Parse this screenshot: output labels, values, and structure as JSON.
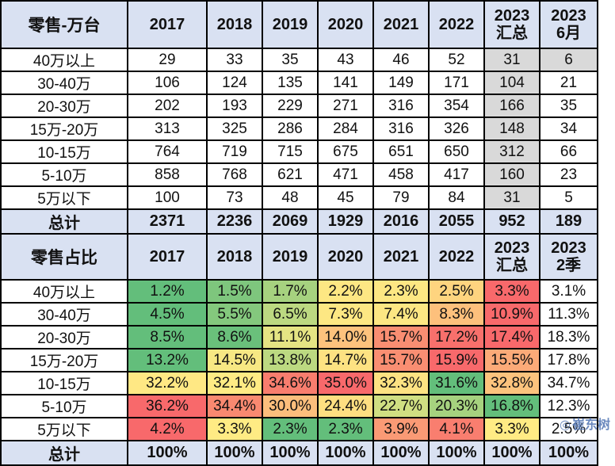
{
  "volume_table": {
    "header": {
      "label": "零售-万台",
      "years": [
        "2017",
        "2018",
        "2019",
        "2020",
        "2021",
        "2022"
      ],
      "col_2023_total": {
        "line1": "2023",
        "line2": "汇总"
      },
      "col_2023_june": {
        "line1": "2023",
        "line2": "6月"
      }
    },
    "rows": [
      {
        "label": "40万以上",
        "values": [
          "29",
          "33",
          "35",
          "43",
          "46",
          "52",
          "31",
          "6"
        ]
      },
      {
        "label": "30-40万",
        "values": [
          "106",
          "124",
          "135",
          "141",
          "149",
          "171",
          "104",
          "21"
        ]
      },
      {
        "label": "20-30万",
        "values": [
          "202",
          "193",
          "229",
          "271",
          "316",
          "354",
          "166",
          "35"
        ]
      },
      {
        "label": "15万-20万",
        "values": [
          "313",
          "325",
          "286",
          "284",
          "316",
          "326",
          "148",
          "34"
        ]
      },
      {
        "label": "10-15万",
        "values": [
          "764",
          "719",
          "715",
          "675",
          "651",
          "650",
          "312",
          "66"
        ]
      },
      {
        "label": "5-10万",
        "values": [
          "858",
          "768",
          "621",
          "471",
          "458",
          "417",
          "160",
          "23"
        ]
      },
      {
        "label": "5万以下",
        "values": [
          "100",
          "73",
          "48",
          "45",
          "79",
          "84",
          "31",
          "5"
        ]
      }
    ],
    "total": {
      "label": "总计",
      "values": [
        "2371",
        "2236",
        "2069",
        "1929",
        "2016",
        "2055",
        "952",
        "189"
      ]
    }
  },
  "share_table": {
    "header": {
      "label": "零售占比",
      "years": [
        "2017",
        "2018",
        "2019",
        "2020",
        "2021",
        "2022"
      ],
      "col_2023_total": {
        "line1": "2023",
        "line2": "汇总"
      },
      "col_2023_q2": {
        "line1": "2023",
        "line2": "2季"
      }
    },
    "rows": [
      {
        "label": "40万以上",
        "values": [
          "1.2%",
          "1.5%",
          "1.7%",
          "2.2%",
          "2.3%",
          "2.5%",
          "3.3%",
          "3.1%"
        ],
        "colors": [
          "#63be7b",
          "#7ec67d",
          "#a6d27f",
          "#fde783",
          "#fde783",
          "#fed47f",
          "#f8696b",
          "#ffffff"
        ]
      },
      {
        "label": "30-40万",
        "values": [
          "4.5%",
          "5.5%",
          "6.5%",
          "7.3%",
          "7.4%",
          "8.3%",
          "10.9%",
          "11.3%"
        ],
        "colors": [
          "#63be7b",
          "#84c87d",
          "#bcd981",
          "#fde783",
          "#fde783",
          "#fdc07c",
          "#f8696b",
          "#ffffff"
        ]
      },
      {
        "label": "20-30万",
        "values": [
          "8.5%",
          "8.6%",
          "11.1%",
          "14.0%",
          "15.7%",
          "17.2%",
          "17.4%",
          "18.3%"
        ],
        "colors": [
          "#63be7b",
          "#6ac07b",
          "#e5e483",
          "#fdc27d",
          "#f98e72",
          "#f8706c",
          "#f8696b",
          "#ffffff"
        ]
      },
      {
        "label": "15万-20万",
        "values": [
          "13.2%",
          "14.5%",
          "13.8%",
          "14.7%",
          "15.7%",
          "15.9%",
          "15.5%",
          "17.8%"
        ],
        "colors": [
          "#63be7b",
          "#f7e883",
          "#bcd981",
          "#fde282",
          "#f98e72",
          "#f8696b",
          "#fcaa78",
          "#ffffff"
        ]
      },
      {
        "label": "10-15万",
        "values": [
          "32.2%",
          "32.1%",
          "34.6%",
          "35.0%",
          "32.3%",
          "31.6%",
          "32.8%",
          "34.7%"
        ],
        "colors": [
          "#ffe884",
          "#ffeb84",
          "#f97d6e",
          "#f8696b",
          "#fde282",
          "#63be7b",
          "#fcc37d",
          "#ffffff"
        ]
      },
      {
        "label": "5-10万",
        "values": [
          "36.2%",
          "34.4%",
          "30.0%",
          "24.4%",
          "22.7%",
          "20.3%",
          "16.8%",
          "12.3%"
        ],
        "colors": [
          "#f8696b",
          "#f98970",
          "#fcbe7c",
          "#fedf81",
          "#d0df82",
          "#a6d27f",
          "#63be7b",
          "#ffffff"
        ]
      },
      {
        "label": "5万以下",
        "values": [
          "4.2%",
          "3.3%",
          "2.3%",
          "2.3%",
          "3.9%",
          "4.1%",
          "3.3%",
          "2.5%"
        ],
        "colors": [
          "#f8696b",
          "#ffeb84",
          "#63be7b",
          "#63be7b",
          "#fa9a75",
          "#f97e6f",
          "#ffeb84",
          "#ffffff"
        ]
      }
    ],
    "total": {
      "label": "总计",
      "values": [
        "100%",
        "100%",
        "100%",
        "100%",
        "100%",
        "100%",
        "100%",
        "100%"
      ]
    }
  },
  "watermark": {
    "text": "崔东树"
  }
}
